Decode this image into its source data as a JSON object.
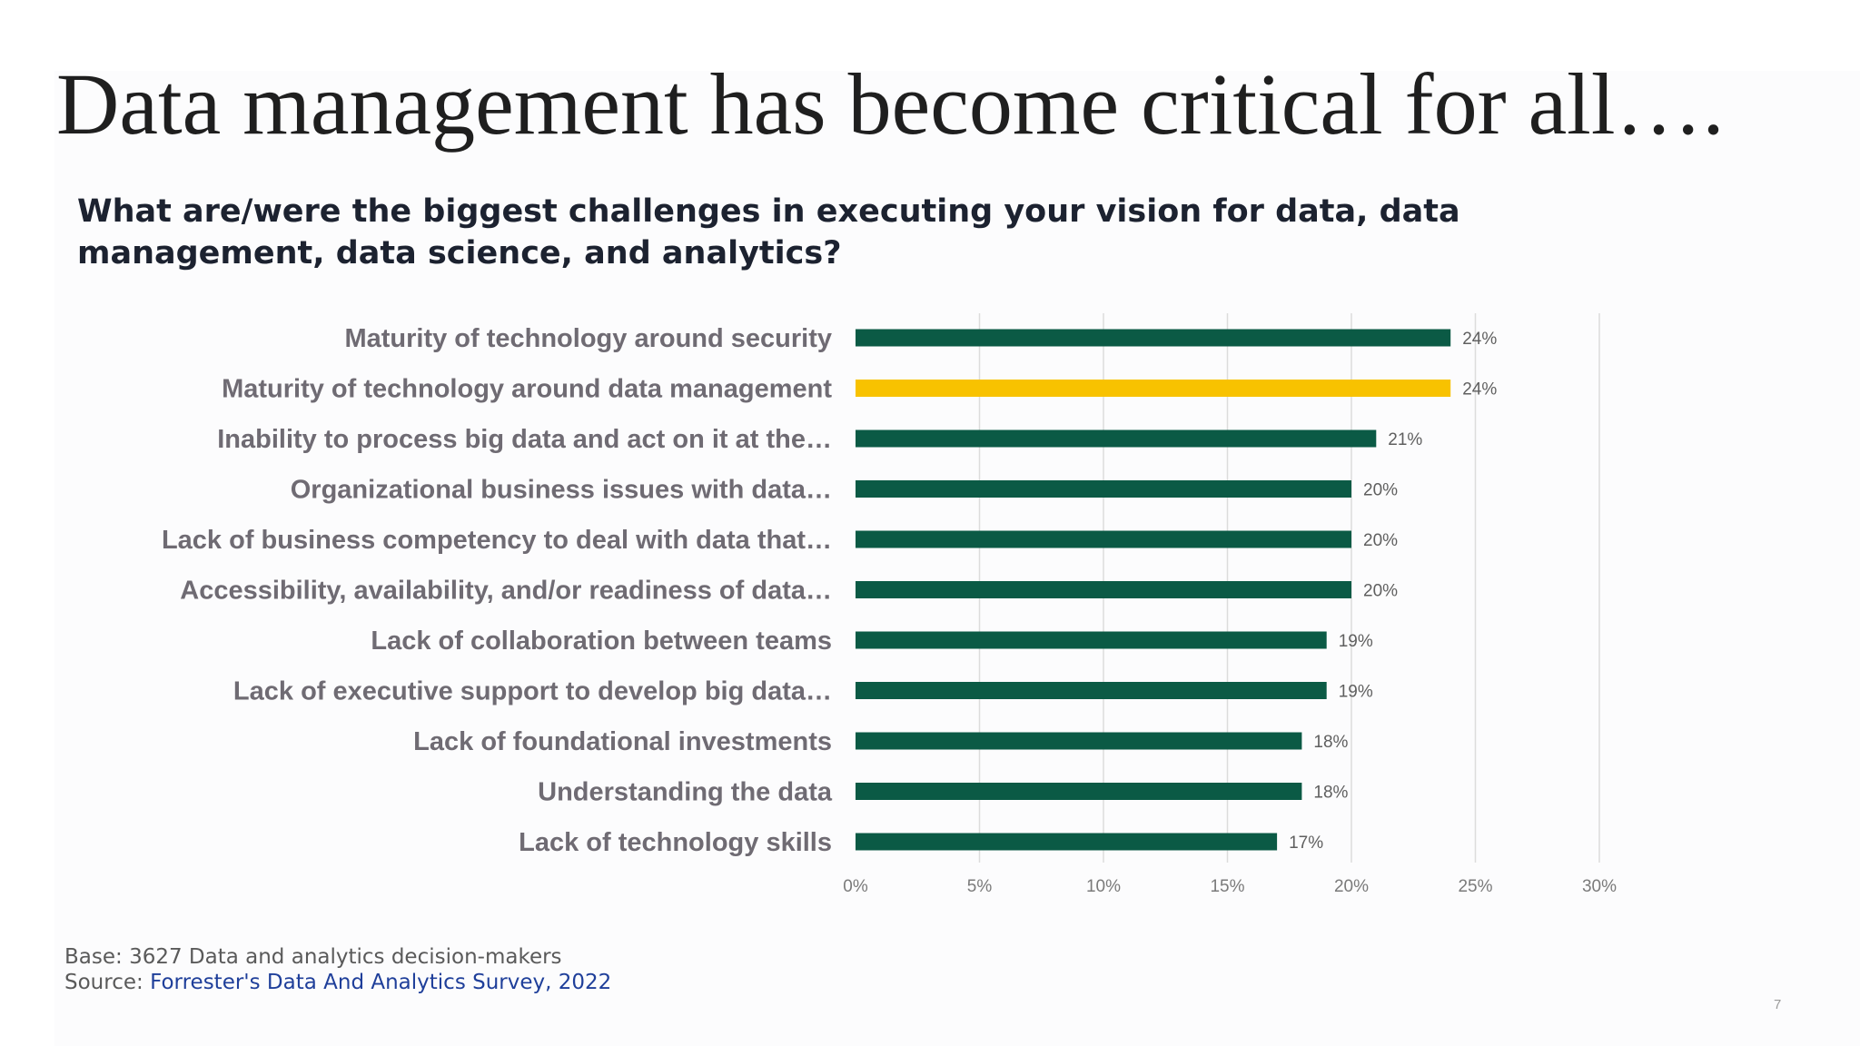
{
  "slide": {
    "title": "Data management has become critical for all….",
    "question": "What are/were the biggest challenges in executing your vision for data, data management, data science, and analytics?",
    "footnote": {
      "base": "Base: 3627 Data and analytics decision-makers",
      "source_prefix": "Source: ",
      "source_link": "Forrester's Data And Analytics Survey, 2022"
    },
    "page_number": "7"
  },
  "colors": {
    "bar": "#0b5a45",
    "highlight": "#f8c200",
    "grid": "#dcdcdc"
  },
  "chart_data": {
    "type": "bar",
    "orientation": "horizontal",
    "title": "",
    "xlabel": "",
    "ylabel": "",
    "xlim": [
      0,
      30
    ],
    "tick_values": [
      0,
      5,
      10,
      15,
      20,
      25,
      30
    ],
    "tick_labels": [
      "0%",
      "5%",
      "10%",
      "15%",
      "20%",
      "25%",
      "30%"
    ],
    "grid": true,
    "categories": [
      "Maturity of technology around security",
      "Maturity of technology around data management",
      "Inability to process big data and act on it at the…",
      "Organizational business issues with data…",
      "Lack of business competency to deal with data that…",
      "Accessibility, availability, and/or readiness of data…",
      "Lack of collaboration between teams",
      "Lack of executive support to develop big data…",
      "Lack of foundational investments",
      "Understanding the data",
      "Lack of technology skills"
    ],
    "values": [
      24,
      24,
      21,
      20,
      20,
      20,
      19,
      19,
      18,
      18,
      17
    ],
    "value_labels": [
      "24%",
      "24%",
      "21%",
      "20%",
      "20%",
      "20%",
      "19%",
      "19%",
      "18%",
      "18%",
      "17%"
    ],
    "highlight_index": 1
  }
}
